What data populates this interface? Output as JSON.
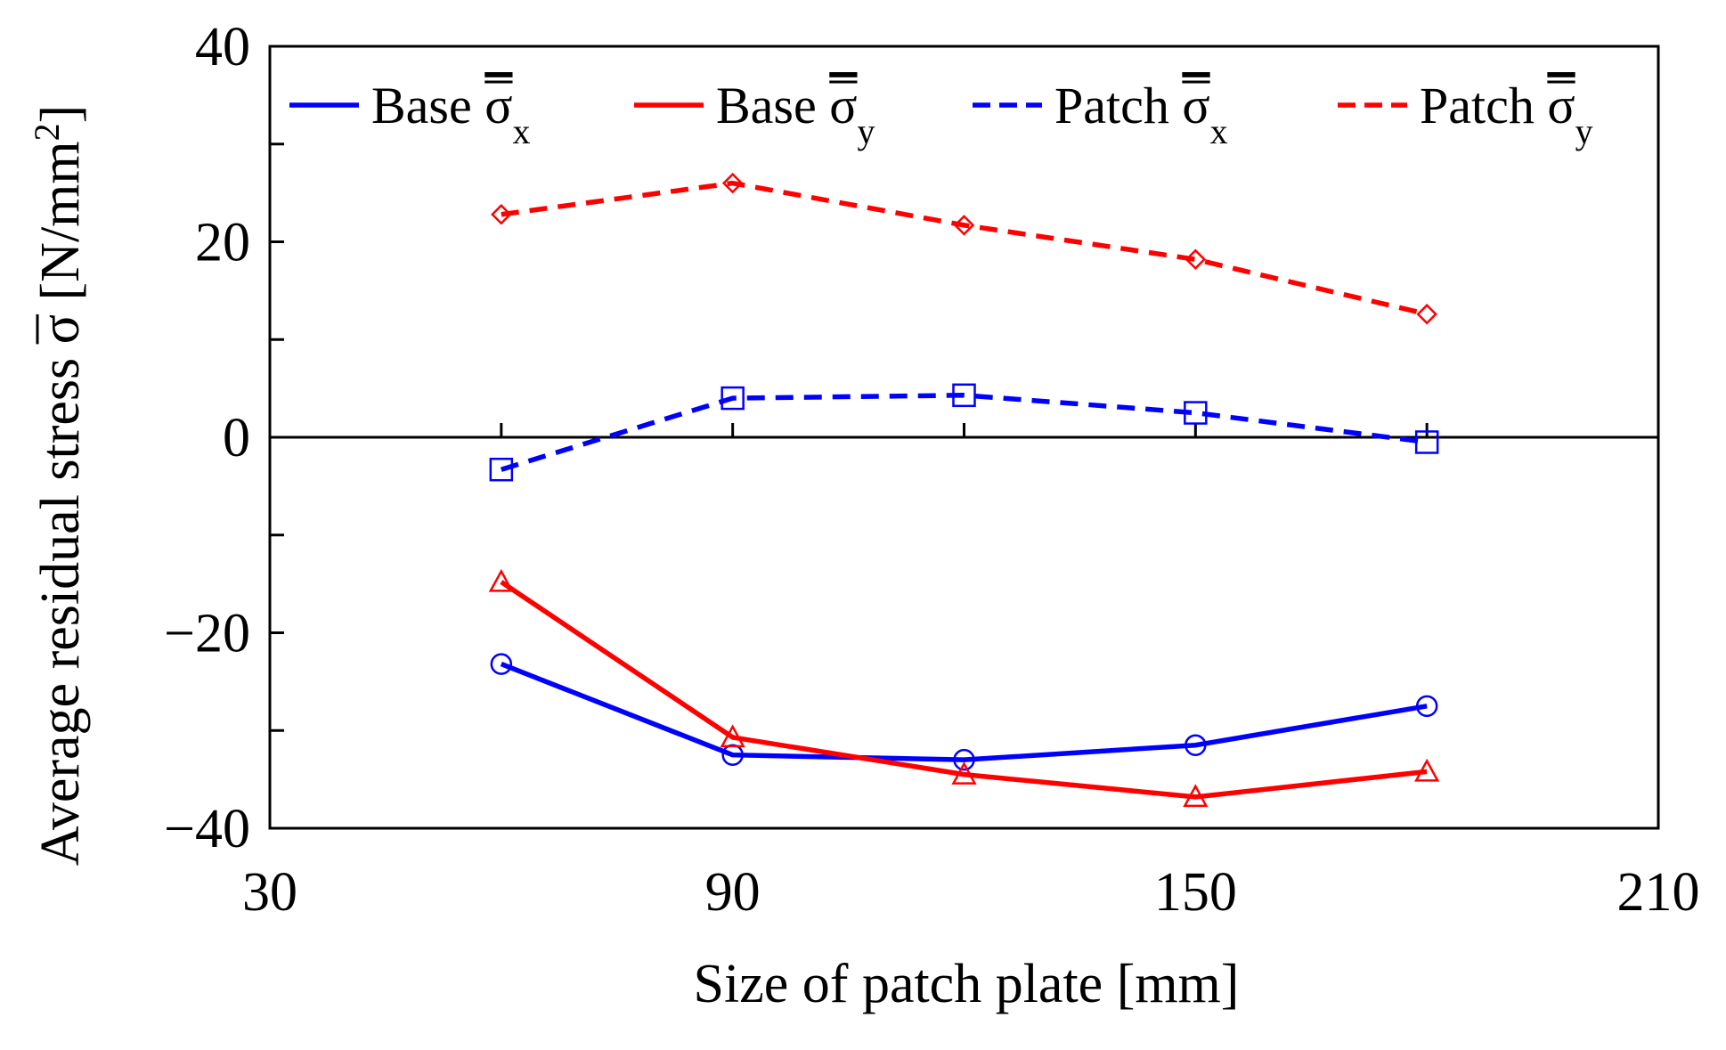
{
  "chart_data": {
    "type": "line",
    "title": "",
    "xlabel": "Size of patch plate [mm]",
    "ylabel": "Average residual stress σ [N/mm",
    "ylabel_unit_sup": "2",
    "ylabel_close": "]",
    "xlim": [
      30,
      210
    ],
    "ylim": [
      -40,
      40
    ],
    "xticks": [
      30,
      90,
      150,
      210
    ],
    "xtick_labels": [
      "30",
      "90",
      "150",
      "210"
    ],
    "yticks": [
      -40,
      -20,
      0,
      20,
      40
    ],
    "ytick_labels": [
      "−40",
      "−20",
      "0",
      "20",
      "40"
    ],
    "x": [
      60,
      90,
      120,
      150,
      180
    ],
    "series": [
      {
        "name": "Base σx",
        "label_main": "Base ",
        "symbol": "σ",
        "sub": "x",
        "color": "#0000ff",
        "dash": "solid",
        "marker": "circle",
        "values": [
          -23.2,
          -32.5,
          -33.0,
          -31.5,
          -27.5
        ]
      },
      {
        "name": "Base σy",
        "label_main": "Base ",
        "symbol": "σ",
        "sub": "y",
        "color": "#ff0000",
        "dash": "solid",
        "marker": "triangle",
        "values": [
          -14.8,
          -30.7,
          -34.5,
          -36.8,
          -34.2
        ]
      },
      {
        "name": "Patch σx",
        "label_main": "Patch ",
        "symbol": "σ",
        "sub": "x",
        "color": "#0000ff",
        "dash": "dashed",
        "marker": "square",
        "values": [
          -3.3,
          4.0,
          4.3,
          2.5,
          -0.5
        ]
      },
      {
        "name": "Patch σy",
        "label_main": "Patch ",
        "symbol": "σ",
        "sub": "y",
        "color": "#ff0000",
        "dash": "dashed",
        "marker": "diamond",
        "values": [
          22.8,
          26.0,
          21.7,
          18.2,
          12.6
        ]
      }
    ],
    "zero_line": true,
    "grid": false,
    "legend_position": "top"
  }
}
